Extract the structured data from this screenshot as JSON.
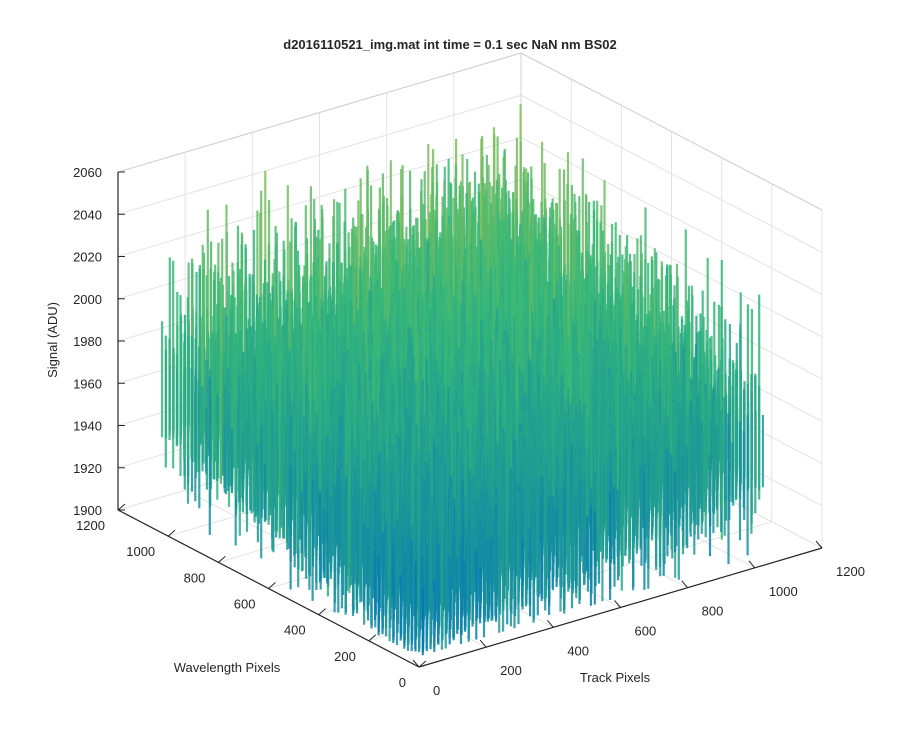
{
  "chart_data": {
    "type": "surface",
    "title": "d2016110521_img.mat int time = 0.1 sec  NaN nm BS02",
    "xlabel": "Track Pixels",
    "ylabel": "Wavelength Pixels",
    "zlabel": "Signal (ADU)",
    "xlim": [
      0,
      1200
    ],
    "ylim": [
      0,
      1200
    ],
    "zlim": [
      1900,
      2060
    ],
    "x_ticks": [
      "0",
      "200",
      "400",
      "600",
      "800",
      "1000",
      "1200"
    ],
    "y_ticks": [
      "0",
      "200",
      "400",
      "600",
      "800",
      "1000",
      "1200"
    ],
    "z_ticks": [
      "1900",
      "1920",
      "1940",
      "1960",
      "1980",
      "2000",
      "2020",
      "2040",
      "2060"
    ],
    "grid": true,
    "colormap": "parula",
    "surface_extent": {
      "x": [
        0,
        1024
      ],
      "y": [
        0,
        1024
      ]
    },
    "surface": {
      "z_mean": 1960,
      "z_range": [
        1905,
        2060
      ],
      "corner_levels": {
        "x0_y0": 1925,
        "x1024_y0": 1955,
        "x0_y1024": 1965,
        "x1024_y1024": 1985
      }
    },
    "colors": {
      "low": "#0072bd",
      "mid": "#35b779",
      "high": "#e6c832"
    }
  }
}
